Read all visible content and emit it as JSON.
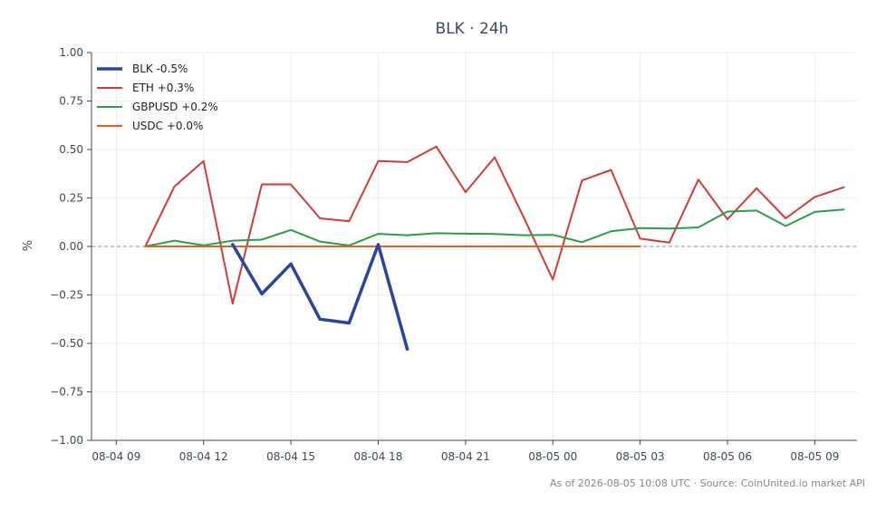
{
  "chart_data": {
    "type": "line",
    "title": "BLK · 24h",
    "ylabel": "%",
    "xlabel": "",
    "ylim": [
      -1.0,
      1.0
    ],
    "yticks": [
      1.0,
      0.75,
      0.5,
      0.25,
      0.0,
      -0.25,
      -0.5,
      -0.75,
      -1.0
    ],
    "ytick_labels": [
      "1.00",
      "0.75",
      "0.50",
      "0.25",
      "0.00",
      "−0.25",
      "−0.50",
      "−0.75",
      "−1.00"
    ],
    "xlim": [
      -0.85,
      25.45
    ],
    "xticks": [
      0,
      3,
      6,
      9,
      12,
      15,
      18,
      21,
      24
    ],
    "xtick_labels": [
      "08-04 09",
      "08-04 12",
      "08-04 15",
      "08-04 18",
      "08-04 21",
      "08-05 00",
      "08-05 03",
      "08-05 06",
      "08-05 09"
    ],
    "x_units": "hours since 08-04 09:00",
    "grid": true,
    "zero_line": true,
    "legend_position": "top-left",
    "series": [
      {
        "name": "BLK -0.5%",
        "color": "#2a44a6",
        "width": 3.5,
        "x": [
          4,
          5,
          6,
          7,
          8,
          9,
          10
        ],
        "values": [
          0.01,
          -0.245,
          -0.09,
          -0.375,
          -0.395,
          0.01,
          -0.53
        ]
      },
      {
        "name": "ETH +0.3%",
        "color": "#d43a3a",
        "width": 2,
        "x": [
          1,
          2,
          3,
          4,
          5,
          6,
          7,
          8,
          9,
          10,
          11,
          12,
          13,
          14,
          15,
          16,
          17,
          18,
          19,
          20,
          21,
          22,
          23,
          24,
          25
        ],
        "values": [
          0.0,
          0.31,
          0.44,
          -0.295,
          0.32,
          0.32,
          0.145,
          0.13,
          0.44,
          0.435,
          0.515,
          0.28,
          0.46,
          0.15,
          -0.17,
          0.34,
          0.395,
          0.04,
          0.02,
          0.345,
          0.14,
          0.3,
          0.145,
          0.255,
          0.305
        ]
      },
      {
        "name": "GBPUSD +0.2%",
        "color": "#27a048",
        "width": 2,
        "x": [
          1,
          2,
          3,
          4,
          5,
          6,
          7,
          8,
          9,
          10,
          11,
          12,
          13,
          14,
          15,
          16,
          17,
          18,
          19,
          20,
          21,
          22,
          23,
          24,
          25
        ],
        "values": [
          0.0,
          0.03,
          0.005,
          0.03,
          0.035,
          0.085,
          0.025,
          0.005,
          0.065,
          0.058,
          0.068,
          0.066,
          0.064,
          0.058,
          0.06,
          0.022,
          0.078,
          0.095,
          0.092,
          0.098,
          0.18,
          0.185,
          0.105,
          0.178,
          0.19
        ]
      },
      {
        "name": "USDC +0.0%",
        "color": "#e0601e",
        "width": 2,
        "x": [
          1,
          2,
          3,
          4,
          5,
          6,
          7,
          8,
          9,
          10,
          11,
          12,
          13,
          14,
          15,
          16,
          17,
          18
        ],
        "values": [
          0,
          0,
          0,
          0,
          0,
          0,
          0,
          0,
          0,
          0,
          0,
          0,
          0,
          0,
          0,
          0,
          0,
          0
        ]
      }
    ]
  },
  "footer": "As of 2026-08-05 10:08 UTC · Source: CoinUnited.io market API"
}
